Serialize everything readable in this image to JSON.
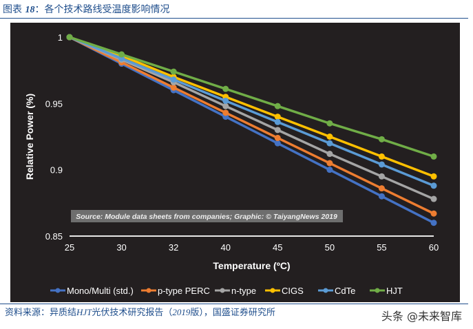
{
  "figure": {
    "label": "图表",
    "number": "18",
    "title": "：各个技术路线受温度影响情况"
  },
  "source": {
    "prefix": "资料来源：异质结",
    "hjt": "HJT",
    "middle": "光伏技术研究报告（",
    "year": "2019",
    "suffix": "版），国盛证券研究所"
  },
  "watermark": "头条 @未来智库",
  "chart_data": {
    "type": "line",
    "title": "",
    "xlabel": "Temperature (ºC)",
    "ylabel": "Relative Power (%)",
    "categories": [
      "25",
      "30",
      "32",
      "40",
      "45",
      "50",
      "55",
      "60"
    ],
    "ylim": [
      0.85,
      1.0
    ],
    "yticks": [
      "1",
      "0.95",
      "0.9",
      "0.85"
    ],
    "grid": false,
    "legend": "bottom",
    "annotation": "Source: Module data sheets from companies; Graphic: © TaiyangNews 2019",
    "background": "#231f20",
    "series": [
      {
        "name": "Mono/Multi (std.)",
        "color": "#4472c4",
        "values": [
          1,
          0.98,
          0.96,
          0.94,
          0.92,
          0.9,
          0.88,
          0.86
        ]
      },
      {
        "name": "p-type PERC",
        "color": "#ed7d31",
        "values": [
          1,
          0.981,
          0.962,
          0.943,
          0.924,
          0.905,
          0.886,
          0.867
        ]
      },
      {
        "name": "n-type",
        "color": "#a5a5a5",
        "values": [
          1,
          0.983,
          0.966,
          0.948,
          0.93,
          0.912,
          0.895,
          0.878
        ]
      },
      {
        "name": "CIGS",
        "color": "#ffc000",
        "values": [
          1,
          0.986,
          0.97,
          0.955,
          0.94,
          0.925,
          0.91,
          0.895
        ]
      },
      {
        "name": "CdTe",
        "color": "#5b9bd5",
        "values": [
          1,
          0.984,
          0.968,
          0.952,
          0.936,
          0.92,
          0.904,
          0.888
        ]
      },
      {
        "name": "HJT",
        "color": "#70ad47",
        "values": [
          1,
          0.987,
          0.974,
          0.961,
          0.948,
          0.935,
          0.923,
          0.91
        ]
      }
    ]
  }
}
